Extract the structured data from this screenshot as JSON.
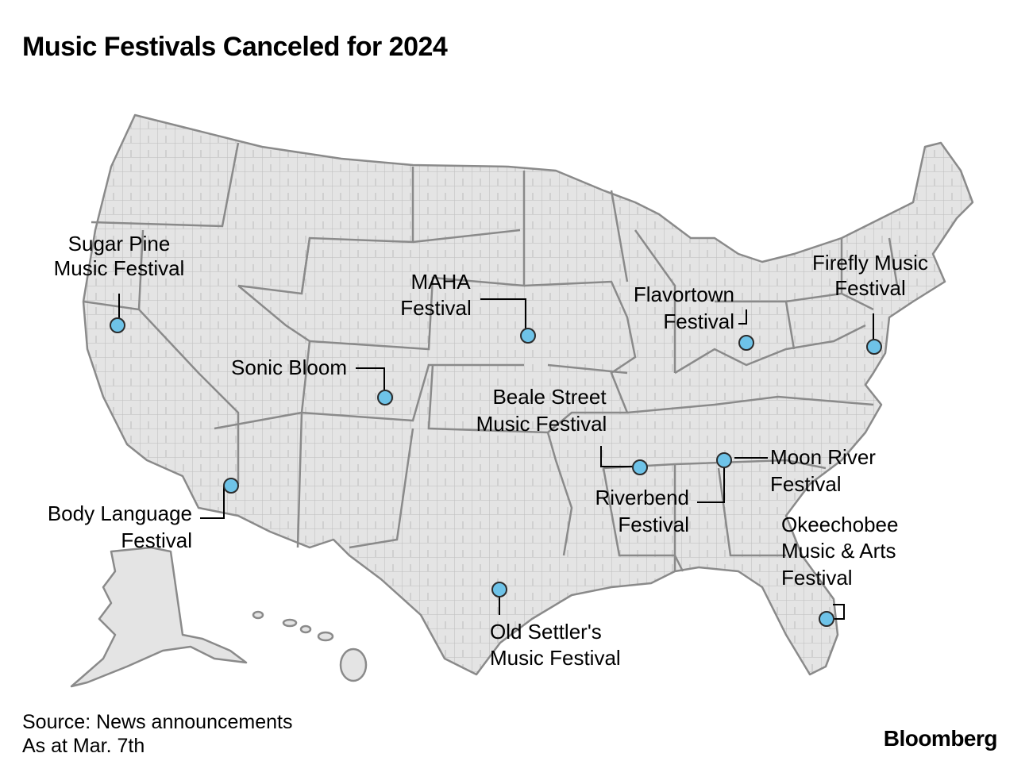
{
  "title": "Music Festivals Canceled for 2024",
  "source_line1": "Source: News announcements",
  "source_line2": "As at Mar. 7th",
  "brand": "Bloomberg",
  "colors": {
    "marker": "#6ec3e8",
    "land": "#e4e4e4",
    "border": "#8a8a8a"
  },
  "festivals": [
    {
      "name_lines": [
        "Sugar Pine",
        "Music Festival"
      ]
    },
    {
      "name_lines": [
        "MAHA",
        "Festival"
      ]
    },
    {
      "name_lines": [
        "Flavortown",
        "Festival"
      ]
    },
    {
      "name_lines": [
        "Firefly Music",
        "Festival"
      ]
    },
    {
      "name_lines": [
        "Sonic Bloom"
      ]
    },
    {
      "name_lines": [
        "Beale Street",
        "Music Festival"
      ]
    },
    {
      "name_lines": [
        "Moon River",
        "Festival"
      ]
    },
    {
      "name_lines": [
        "Riverbend",
        "Festival"
      ]
    },
    {
      "name_lines": [
        "Body Language",
        "Festival"
      ]
    },
    {
      "name_lines": [
        "Okeechobee",
        "Music & Arts",
        "Festival"
      ]
    },
    {
      "name_lines": [
        "Old Settler's",
        "Music Festival"
      ]
    }
  ]
}
